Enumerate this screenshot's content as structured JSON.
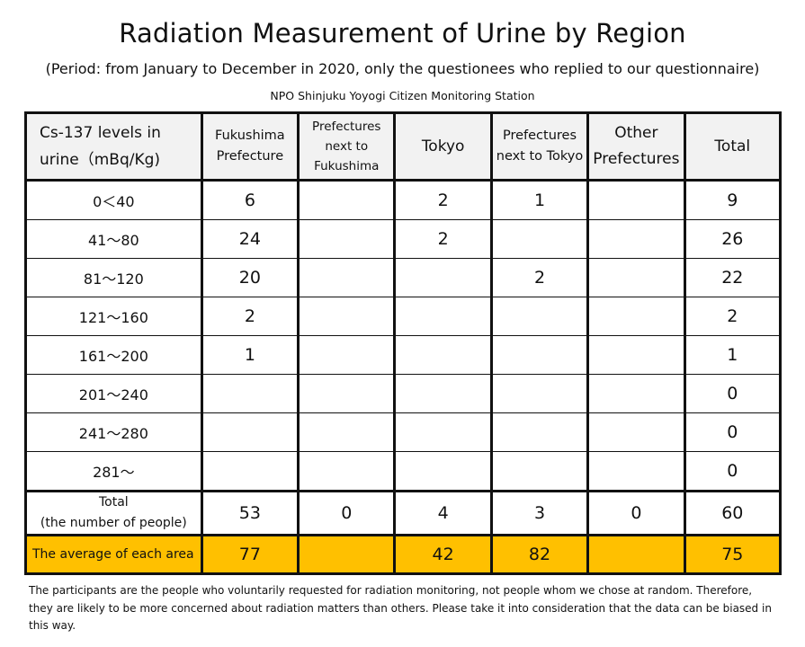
{
  "title": "Radiation Measurement of Urine by Region",
  "subtitle": "(Period: from January to December in 2020, only the questionees who replied to our questionnaire)",
  "organization": "NPO Shinjuku Yoyogi Citizen Monitoring Station",
  "table": {
    "headers": {
      "levels_line1": "Cs-137 levels in",
      "levels_line2": "urine（mBq/Kg)",
      "fukushima_line1": "Fukushima",
      "fukushima_line2": "Prefecture",
      "next_fukushima_line1": "Prefectures",
      "next_fukushima_line2": "next to",
      "next_fukushima_line3": "Fukushima",
      "tokyo": "Tokyo",
      "next_tokyo_line1": "Prefectures",
      "next_tokyo_line2": "next to Tokyo",
      "other_line1": "Other",
      "other_line2": "Prefectures",
      "total": "Total"
    },
    "rows": [
      {
        "range": "0＜40",
        "fukushima": "6",
        "next_fukushima": "",
        "tokyo": "2",
        "next_tokyo": "1",
        "other": "",
        "total": "9"
      },
      {
        "range": "41～80",
        "fukushima": "24",
        "next_fukushima": "",
        "tokyo": "2",
        "next_tokyo": "",
        "other": "",
        "total": "26"
      },
      {
        "range": "81～120",
        "fukushima": "20",
        "next_fukushima": "",
        "tokyo": "",
        "next_tokyo": "2",
        "other": "",
        "total": "22"
      },
      {
        "range": "121～160",
        "fukushima": "2",
        "next_fukushima": "",
        "tokyo": "",
        "next_tokyo": "",
        "other": "",
        "total": "2"
      },
      {
        "range": "161～200",
        "fukushima": "1",
        "next_fukushima": "",
        "tokyo": "",
        "next_tokyo": "",
        "other": "",
        "total": "1"
      },
      {
        "range": "201～240",
        "fukushima": "",
        "next_fukushima": "",
        "tokyo": "",
        "next_tokyo": "",
        "other": "",
        "total": "0"
      },
      {
        "range": "241～280",
        "fukushima": "",
        "next_fukushima": "",
        "tokyo": "",
        "next_tokyo": "",
        "other": "",
        "total": "0"
      },
      {
        "range": "281～",
        "fukushima": "",
        "next_fukushima": "",
        "tokyo": "",
        "next_tokyo": "",
        "other": "",
        "total": "0"
      }
    ],
    "total_row": {
      "label_line1": "Total",
      "label_line2": "(the number of people)",
      "fukushima": "53",
      "next_fukushima": "0",
      "tokyo": "4",
      "next_tokyo": "3",
      "other": "0",
      "total": "60"
    },
    "average_row": {
      "label": "The average of each area",
      "fukushima": "77",
      "next_fukushima": "",
      "tokyo": "42",
      "next_tokyo": "82",
      "other": "",
      "total": "75"
    },
    "highlight_color": "#ffc000",
    "header_bg_color": "#f2f2f2"
  },
  "note": "The participants are the people who voluntarily requested for radiation monitoring, not people whom we chose at random. Therefore, they are likely to be more concerned about radiation matters than others. Please take it into consideration that the data can be biased in this way."
}
